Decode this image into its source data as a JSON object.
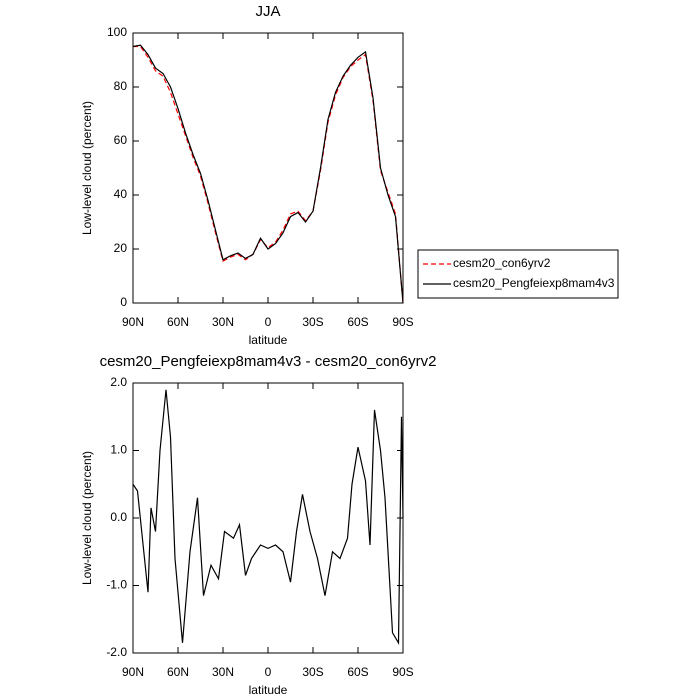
{
  "chart_data": [
    {
      "type": "line",
      "title": "JJA",
      "ylabel": "Low-level cloud (percent)",
      "xlabel": "latitude",
      "x": [
        90,
        85,
        80,
        75,
        70,
        65,
        60,
        55,
        50,
        45,
        40,
        35,
        30,
        25,
        20,
        15,
        10,
        5,
        0,
        -5,
        -10,
        -15,
        -20,
        -25,
        -30,
        -35,
        -40,
        -45,
        -50,
        -55,
        -60,
        -65,
        -70,
        -75,
        -80,
        -85,
        -90
      ],
      "series": [
        {
          "name": "cesm20_con6yrv2",
          "color": "#ff0000",
          "dash": true,
          "values": [
            95,
            95,
            91,
            86,
            84,
            78,
            70,
            62,
            54,
            47,
            37,
            26,
            15.5,
            17,
            18,
            16,
            18,
            23.5,
            20.5,
            22.5,
            27,
            33,
            34,
            30.5,
            34,
            49,
            67,
            77,
            83.5,
            87.5,
            90,
            92,
            75,
            49,
            41,
            33,
            0
          ]
        },
        {
          "name": "cesm20_Pengfeiexp8mam4v3",
          "color": "#000000",
          "dash": false,
          "values": [
            95,
            95.5,
            92,
            87,
            85,
            80,
            72,
            63,
            55,
            48,
            38,
            27,
            16,
            17.5,
            18.5,
            16.5,
            18,
            24,
            20,
            22,
            26,
            32,
            33.5,
            30,
            34,
            50,
            68,
            78,
            84,
            88,
            91,
            93,
            76,
            50,
            40,
            32,
            0
          ]
        }
      ],
      "xlim": [
        90,
        -90
      ],
      "xticks": [
        {
          "value": 90,
          "label": "90N"
        },
        {
          "value": 60,
          "label": "60N"
        },
        {
          "value": 30,
          "label": "30N"
        },
        {
          "value": 0,
          "label": "0"
        },
        {
          "value": -30,
          "label": "30S"
        },
        {
          "value": -60,
          "label": "60S"
        },
        {
          "value": -90,
          "label": "90S"
        }
      ],
      "ylim": [
        0,
        100
      ],
      "yticks": [
        0,
        20,
        40,
        60,
        80,
        100
      ],
      "legend": "right"
    },
    {
      "type": "line",
      "title": "cesm20_Pengfeiexp8mam4v3 - cesm20_con6yrv2",
      "ylabel": "Low-level cloud (percent)",
      "xlabel": "latitude",
      "x": [
        90,
        87,
        80,
        78,
        75,
        72,
        68,
        65,
        62,
        57,
        52,
        47,
        43,
        38,
        33,
        29,
        23,
        19,
        15,
        11,
        5,
        0,
        -5,
        -10,
        -15,
        -19,
        -23,
        -28,
        -33,
        -38,
        -43,
        -48,
        -53,
        -56,
        -60,
        -65,
        -68,
        -71,
        -75,
        -78,
        -83,
        -87,
        -89,
        -90
      ],
      "values": [
        0.5,
        0.4,
        -1.1,
        0.15,
        -0.2,
        1.0,
        1.9,
        1.2,
        -0.6,
        -1.85,
        -0.5,
        0.3,
        -1.15,
        -0.7,
        -0.9,
        -0.2,
        -0.3,
        -0.1,
        -0.85,
        -0.6,
        -0.4,
        -0.45,
        -0.4,
        -0.5,
        -0.95,
        -0.2,
        0.35,
        -0.2,
        -0.6,
        -1.15,
        -0.5,
        -0.6,
        -0.3,
        0.5,
        1.05,
        0.55,
        -0.4,
        1.6,
        1.0,
        0.3,
        -1.7,
        -1.85,
        1.5,
        0.0
      ],
      "color": "#000000",
      "xlim": [
        90,
        -90
      ],
      "xticks": [
        {
          "value": 90,
          "label": "90N"
        },
        {
          "value": 60,
          "label": "60N"
        },
        {
          "value": 30,
          "label": "30N"
        },
        {
          "value": 0,
          "label": "0"
        },
        {
          "value": -30,
          "label": "30S"
        },
        {
          "value": -60,
          "label": "60S"
        },
        {
          "value": -90,
          "label": "90S"
        }
      ],
      "ylim": [
        -2,
        2
      ],
      "yticks": [
        {
          "value": -2,
          "label": "-2.0"
        },
        {
          "value": -1,
          "label": "-1.0"
        },
        {
          "value": 0,
          "label": "0.0"
        },
        {
          "value": 1,
          "label": "1.0"
        },
        {
          "value": 2,
          "label": "2.0"
        }
      ]
    }
  ]
}
